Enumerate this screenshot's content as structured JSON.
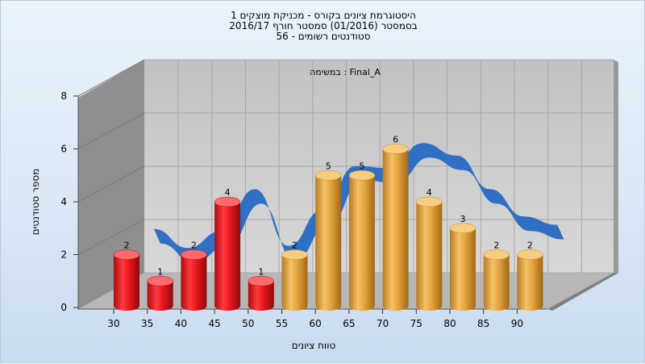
{
  "chart_data": {
    "type": "bar",
    "title_lines": [
      "היסטוגרמת ציונים בקורס - מכניקת מוצקים 1",
      "בסמסטר  (01/2016)  סמסטר חורף 2016/17",
      "סטודנטים רשומים - 56"
    ],
    "annotation": "במשימה : Final_A",
    "xlabel": "טווח ציונים",
    "ylabel": "מספר סטודנטים",
    "categories": [
      "30",
      "35",
      "40",
      "45",
      "50",
      "55",
      "60",
      "65",
      "70",
      "75",
      "80",
      "85",
      "90"
    ],
    "values": [
      2,
      1,
      2,
      4,
      1,
      2,
      5,
      5,
      6,
      4,
      3,
      2,
      2
    ],
    "bar_colors": [
      "#e8161c",
      "#e8161c",
      "#e8161c",
      "#e8161c",
      "#e8161c",
      "#e3a33e",
      "#e3a33e",
      "#e3a33e",
      "#e3a33e",
      "#e3a33e",
      "#e3a33e",
      "#e3a33e",
      "#e3a33e"
    ],
    "ylim": [
      0,
      8
    ],
    "yticks": [
      0,
      2,
      4,
      6,
      8
    ],
    "overlay_line": {
      "type": "ribbon",
      "color": "#2f6fc4",
      "values": [
        2.7,
        1.8,
        2.6,
        4.6,
        1.9,
        3.6,
        5.7,
        5.6,
        6.8,
        6.2,
        4.6,
        3.3,
        2.9
      ]
    },
    "grid": true,
    "style": "3d"
  }
}
